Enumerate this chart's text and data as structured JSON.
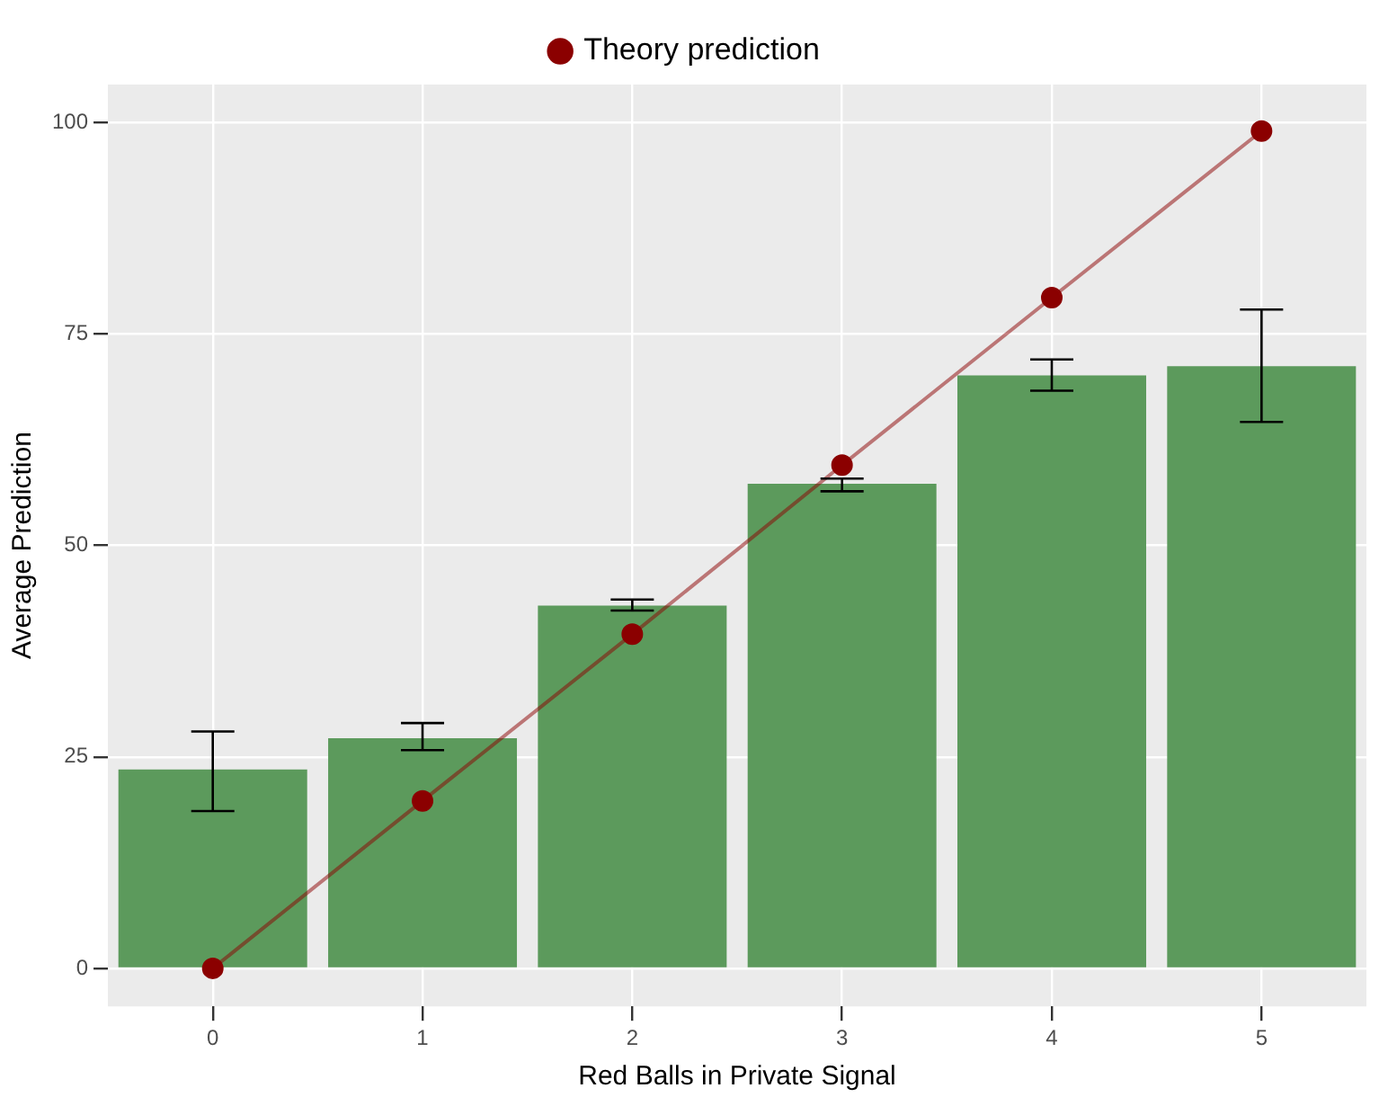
{
  "chart_data": {
    "type": "bar",
    "xlabel": "Red Balls in Private Signal",
    "ylabel": "Average Prediction",
    "categories": [
      "0",
      "1",
      "2",
      "3",
      "4",
      "5"
    ],
    "series": [
      {
        "color": "#5c9a5c",
        "values": [
          23.5,
          27.2,
          42.9,
          57.3,
          70.1,
          71.2
        ],
        "errors": [
          [
            18.6,
            28.0
          ],
          [
            25.8,
            29.0
          ],
          [
            42.3,
            43.6
          ],
          [
            56.4,
            57.9
          ],
          [
            68.3,
            72.0
          ],
          [
            64.6,
            77.9
          ]
        ]
      },
      {
        "type": "line",
        "name": "Theory prediction",
        "color": "#8b0000",
        "values": [
          0,
          19.8,
          39.5,
          59.5,
          79.3,
          99.0
        ],
        "marker": "circle"
      }
    ],
    "ylim": [
      -4.5,
      104.5
    ],
    "yticks": [
      0,
      25,
      50,
      75,
      100
    ],
    "grid": true,
    "legend": "top"
  }
}
